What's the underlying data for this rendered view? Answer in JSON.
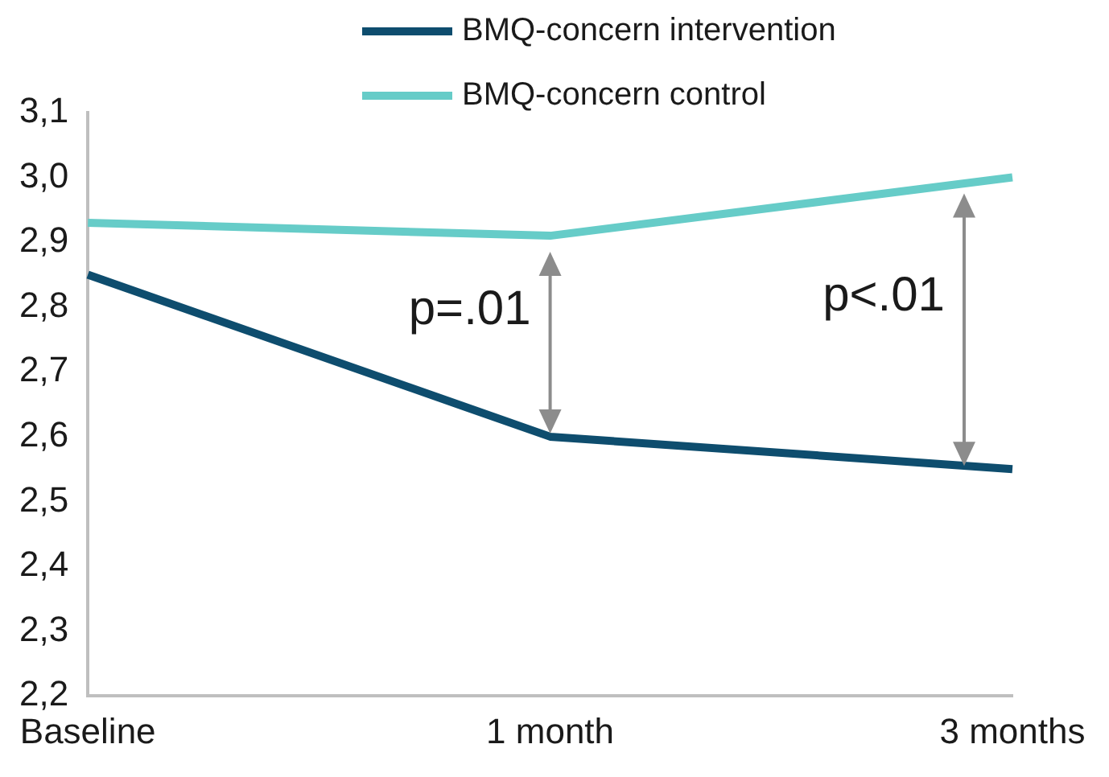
{
  "chart_data": {
    "type": "line",
    "categories": [
      "Baseline",
      "1 month",
      "3 months"
    ],
    "series": [
      {
        "name": "BMQ-concern intervention",
        "color": "#0e4d6e",
        "values": [
          2.85,
          2.6,
          2.55
        ]
      },
      {
        "name": "BMQ-concern control",
        "color": "#66ccc8",
        "values": [
          2.93,
          2.91,
          3.0
        ]
      }
    ],
    "ylim": [
      2.2,
      3.1
    ],
    "yticks": [
      {
        "value": 2.2,
        "label": "2,2"
      },
      {
        "value": 2.3,
        "label": "2,3"
      },
      {
        "value": 2.4,
        "label": "2,4"
      },
      {
        "value": 2.5,
        "label": "2,5"
      },
      {
        "value": 2.6,
        "label": "2,6"
      },
      {
        "value": 2.7,
        "label": "2,7"
      },
      {
        "value": 2.8,
        "label": "2,8"
      },
      {
        "value": 2.9,
        "label": "2,9"
      },
      {
        "value": 3.0,
        "label": "3,0"
      },
      {
        "value": 3.1,
        "label": "3,1"
      }
    ],
    "annotations": [
      "p=.01",
      "p<.01"
    ],
    "grid": false,
    "legend": "top",
    "marker": "none",
    "line_style": "solid"
  }
}
